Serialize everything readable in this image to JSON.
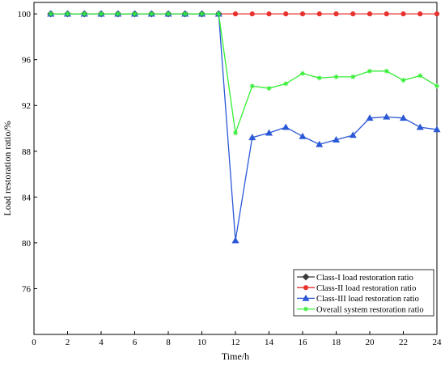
{
  "chart_data": {
    "type": "line",
    "title": "",
    "xlabel": "Time/h",
    "ylabel": "Load restoration ratio/%",
    "xlim": [
      0,
      24
    ],
    "ylim": [
      72,
      101
    ],
    "x_ticks": [
      0,
      2,
      4,
      6,
      8,
      10,
      12,
      14,
      16,
      18,
      20,
      22,
      24
    ],
    "y_ticks": [
      76,
      80,
      84,
      88,
      92,
      96,
      100
    ],
    "x_tick_labels": [
      "0",
      "2",
      "4",
      "6",
      "8",
      "10",
      "12",
      "14",
      "16",
      "18",
      "20",
      "22",
      "24"
    ],
    "y_tick_labels": [
      "76",
      "80",
      "84",
      "88",
      "92",
      "96",
      "100"
    ],
    "grid": false,
    "legend_position": "bottom-right",
    "x": [
      1,
      2,
      3,
      4,
      5,
      6,
      7,
      8,
      9,
      10,
      11,
      12,
      13,
      14,
      15,
      16,
      17,
      18,
      19,
      20,
      21,
      22,
      23,
      24
    ],
    "series": [
      {
        "name": "Class-I load restoration ratio",
        "color": "#3a3a3a",
        "marker": "diamond",
        "values": [
          100,
          100,
          100,
          100,
          100,
          100,
          100,
          100,
          100,
          100,
          100,
          null,
          null,
          null,
          null,
          null,
          null,
          null,
          null,
          null,
          null,
          null,
          null,
          null
        ]
      },
      {
        "name": "Class-II load restoration ratio",
        "color": "#e8322d",
        "marker": "circle",
        "values": [
          100,
          100,
          100,
          100,
          100,
          100,
          100,
          100,
          100,
          100,
          100,
          100,
          100,
          100,
          100,
          100,
          100,
          100,
          100,
          100,
          100,
          100,
          100,
          100
        ]
      },
      {
        "name": "Class-III  load restoration ratio",
        "color": "#2b58d6",
        "marker": "triangle",
        "values": [
          100,
          100,
          100,
          100,
          100,
          100,
          100,
          100,
          100,
          100,
          100,
          80.2,
          89.2,
          89.6,
          90.1,
          89.3,
          88.6,
          89.0,
          89.4,
          90.9,
          91.0,
          90.9,
          90.1,
          89.9
        ]
      },
      {
        "name": "Overall system restoration ratio",
        "color": "#33ee33",
        "marker": "star",
        "values": [
          100,
          100,
          100,
          100,
          100,
          100,
          100,
          100,
          100,
          100,
          100,
          89.6,
          93.7,
          93.5,
          93.9,
          94.8,
          94.4,
          94.5,
          94.5,
          95.0,
          95.0,
          94.2,
          94.6,
          93.7
        ]
      }
    ]
  }
}
